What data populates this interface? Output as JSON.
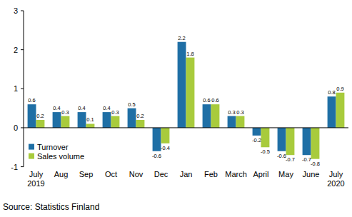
{
  "chart_data": {
    "type": "bar",
    "categories": [
      "July 2019",
      "Aug",
      "Sep",
      "Oct",
      "Nov",
      "Dec",
      "Jan",
      "Feb",
      "March",
      "April",
      "May",
      "June",
      "July 2020"
    ],
    "series": [
      {
        "name": "Turnover",
        "color": "#1f6fa5",
        "values": [
          0.6,
          0.4,
          0.4,
          0.4,
          0.5,
          -0.6,
          2.2,
          0.6,
          0.3,
          -0.2,
          -0.6,
          -0.7,
          0.8
        ]
      },
      {
        "name": "Sales volume",
        "color": "#a8cb3c",
        "values": [
          0.2,
          0.3,
          0.1,
          0.3,
          0.2,
          -0.4,
          1.8,
          0.6,
          0.3,
          -0.5,
          -0.7,
          -0.8,
          0.9
        ]
      }
    ],
    "ylim": [
      -1,
      3
    ],
    "yticks": [
      -1,
      0,
      1,
      2,
      3
    ],
    "grid": false,
    "legend": "bottom-left",
    "data_labels": true,
    "source": "Source: Statistics Finland"
  }
}
